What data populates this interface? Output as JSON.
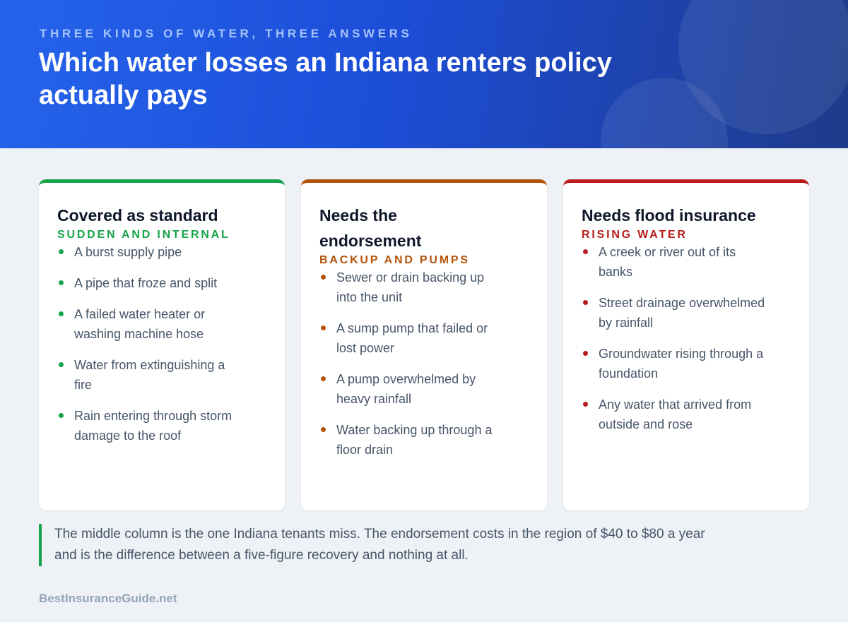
{
  "header": {
    "eyebrow": "THREE KINDS OF WATER, THREE ANSWERS",
    "title": "Which water losses an Indiana renters policy actually pays"
  },
  "columns": [
    {
      "title": "Covered as standard",
      "label": "SUDDEN AND INTERNAL",
      "color": "#16a34a",
      "items": [
        "A burst supply pipe",
        "A pipe that froze and split",
        "A failed water heater or washing machine hose",
        "Water from extinguishing a fire",
        "Rain entering through storm damage to the roof"
      ]
    },
    {
      "title": "Needs the endorsement",
      "label": "BACKUP AND PUMPS",
      "color": "#b45309",
      "items": [
        "Sewer or drain backing up into the unit",
        "A sump pump that failed or lost power",
        "A pump overwhelmed by heavy rainfall",
        "Water backing up through a floor drain"
      ]
    },
    {
      "title": "Needs flood insurance",
      "label": "RISING WATER",
      "color": "#b91c1c",
      "items": [
        "A creek or river out of its banks",
        "Street drainage overwhelmed by rainfall",
        "Groundwater rising through a foundation",
        "Any water that arrived from outside and rose"
      ]
    }
  ],
  "note": "The middle column is the one Indiana tenants miss. The endorsement costs in the region of $40 to $80 a year and is the difference between a five-figure recovery and nothing at all.",
  "footer": "BestInsuranceGuide.net"
}
